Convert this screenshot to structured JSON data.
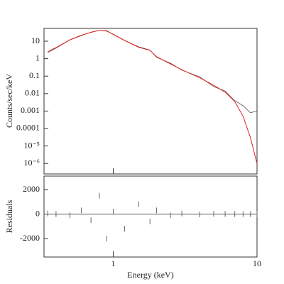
{
  "chart_data": [
    {
      "type": "line",
      "ylabel": "Counts/sec/keV",
      "xlog": true,
      "ylog": true,
      "xlim": [
        0.33,
        10
      ],
      "ylim": [
        2.5e-07,
        54
      ],
      "yticks": [
        10,
        1,
        0.1,
        0.01,
        0.001,
        0.0001,
        {
          "value": 1e-05,
          "label": "10⁻⁵"
        },
        {
          "value": 1e-06,
          "label": "10⁻⁶"
        }
      ],
      "x": [
        0.35,
        0.4,
        0.5,
        0.6,
        0.7,
        0.8,
        0.9,
        1.0,
        1.2,
        1.5,
        1.8,
        2.0,
        2.5,
        3,
        4,
        5,
        6,
        7,
        8,
        9,
        10
      ],
      "series": [
        {
          "color": "#555555",
          "values": [
            2.2,
            4.0,
            12,
            21,
            33,
            41,
            40,
            24,
            11,
            4.8,
            3.1,
            1.2,
            0.55,
            0.22,
            0.09,
            0.025,
            0.014,
            0.004,
            0.002,
            0.0008,
            0.001
          ]
        },
        {
          "color": "#e02020",
          "values": [
            2.5,
            4.3,
            12,
            22,
            32,
            42,
            38,
            25,
            11,
            4.5,
            3,
            1.3,
            0.5,
            0.23,
            0.08,
            0.03,
            0.012,
            0.0035,
            0.0005,
            3e-05,
            1e-06
          ]
        }
      ]
    },
    {
      "type": "scatter",
      "ylabel": "Residuals",
      "xlabel": "Energy (keV)",
      "xlog": true,
      "xlim": [
        0.33,
        10
      ],
      "ylim": [
        -3500,
        3100
      ],
      "xticks": [
        1,
        10
      ],
      "yticks": [
        2000,
        0,
        -2000
      ],
      "x": [
        0.35,
        0.4,
        0.5,
        0.6,
        0.7,
        0.8,
        0.9,
        1.0,
        1.2,
        1.5,
        1.8,
        2.0,
        2.5,
        3,
        4,
        5,
        6,
        7,
        8,
        9,
        10
      ],
      "color": "#666666",
      "values": [
        50,
        0,
        -100,
        300,
        -500,
        1500,
        -2000,
        200,
        -1200,
        800,
        -600,
        300,
        -100,
        50,
        -30,
        20,
        10,
        0,
        0,
        0,
        0
      ]
    }
  ]
}
